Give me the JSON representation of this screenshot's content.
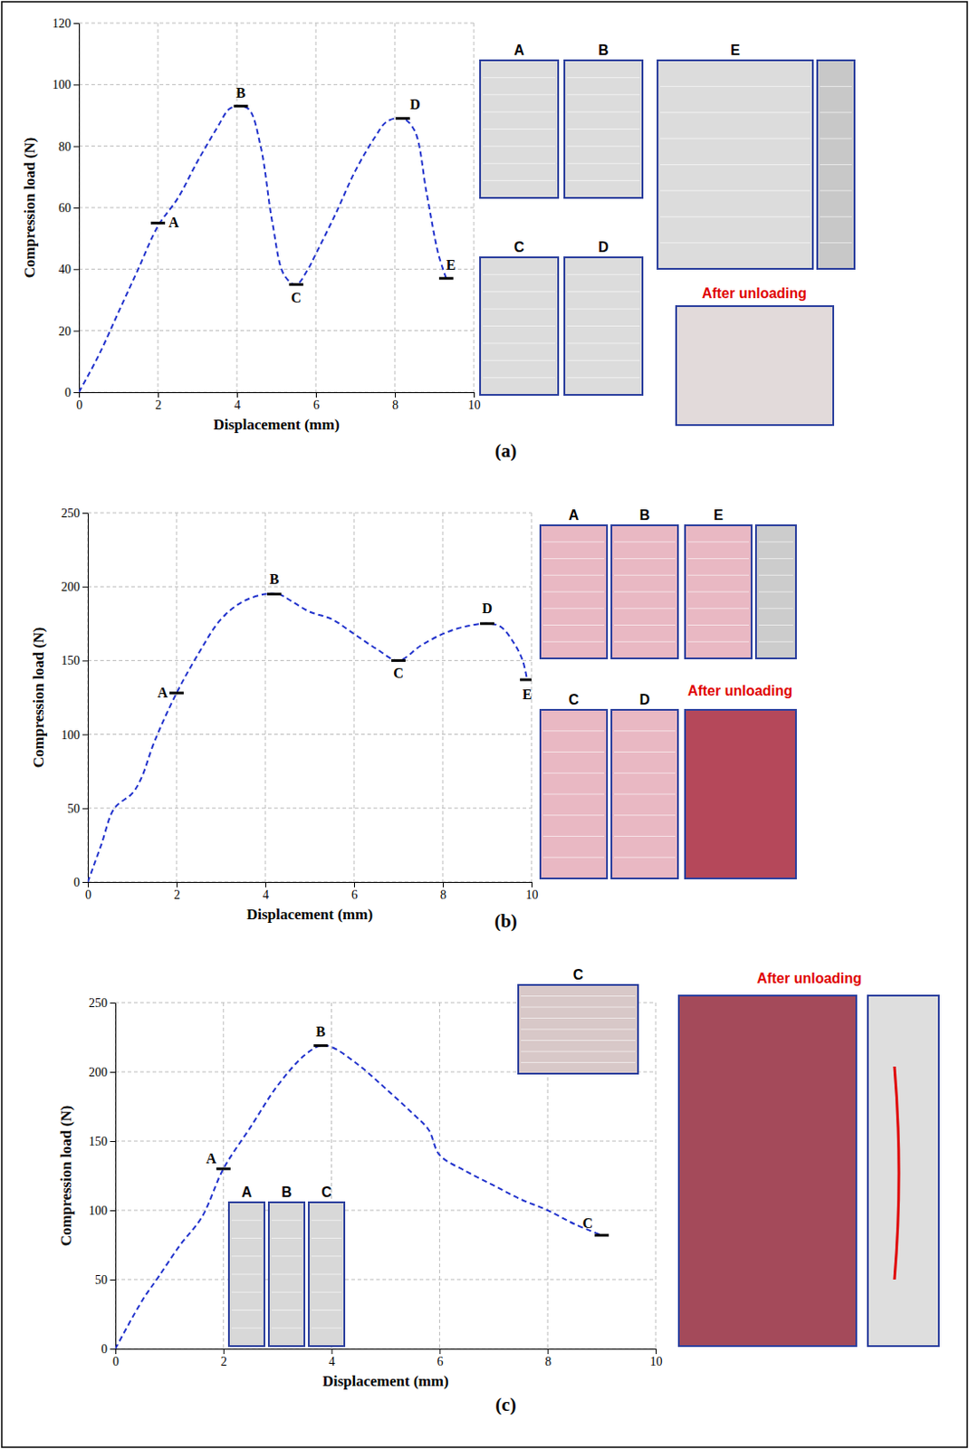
{
  "chart_data": [
    {
      "type": "line",
      "caption": "(a)",
      "x_label": "Displacement (mm)",
      "y_label": "Compression load (N)",
      "xlim": [
        0,
        10
      ],
      "ylim": [
        0,
        120
      ],
      "xticks": [
        0,
        2,
        4,
        6,
        8,
        10
      ],
      "yticks": [
        0,
        20,
        40,
        60,
        80,
        100,
        120
      ],
      "grid": true,
      "series": [
        {
          "color": "#2233cc",
          "line_style": "dashed",
          "x": [
            0,
            0.5,
            1,
            1.5,
            2,
            2.5,
            3,
            3.5,
            3.8,
            4,
            4.3,
            4.6,
            4.9,
            5.2,
            5.5,
            5.8,
            6,
            6.5,
            7,
            7.5,
            7.8,
            8.2,
            8.5,
            8.8,
            9.1,
            9.3
          ],
          "values": [
            0,
            12,
            26,
            40,
            54,
            63,
            75,
            86,
            92,
            93,
            92,
            80,
            55,
            38,
            35,
            40,
            45,
            58,
            72,
            83,
            88,
            89,
            85,
            65,
            45,
            37
          ]
        }
      ],
      "annotations": [
        {
          "text": "A",
          "x": 2,
          "y": 55
        },
        {
          "text": "B",
          "x": 4.1,
          "y": 93
        },
        {
          "text": "C",
          "x": 5.5,
          "y": 35
        },
        {
          "text": "D",
          "x": 8.2,
          "y": 89
        },
        {
          "text": "E",
          "x": 9.3,
          "y": 37
        }
      ],
      "photo_labels": [
        "A",
        "B",
        "C",
        "D",
        "E"
      ],
      "photo_caption": "After unloading"
    },
    {
      "type": "line",
      "caption": "(b)",
      "x_label": "Displacement (mm)",
      "y_label": "Compression load (N)",
      "xlim": [
        0,
        10
      ],
      "ylim": [
        0,
        250
      ],
      "xticks": [
        0,
        2,
        4,
        6,
        8,
        10
      ],
      "yticks": [
        0,
        50,
        100,
        150,
        200,
        250
      ],
      "grid": true,
      "series": [
        {
          "color": "#2233cc",
          "line_style": "dashed",
          "x": [
            0,
            0.3,
            0.6,
            1,
            1.2,
            1.5,
            2,
            2.5,
            3,
            3.5,
            4,
            4.3,
            4.6,
            5,
            5.5,
            6,
            6.5,
            7,
            7.5,
            8,
            8.5,
            9,
            9.3,
            9.6,
            9.8,
            9.9
          ],
          "values": [
            0,
            25,
            50,
            60,
            70,
            95,
            128,
            155,
            178,
            190,
            195,
            195,
            190,
            183,
            178,
            168,
            158,
            150,
            160,
            168,
            173,
            175,
            173,
            162,
            150,
            137
          ]
        }
      ],
      "annotations": [
        {
          "text": "A",
          "x": 2,
          "y": 128
        },
        {
          "text": "B",
          "x": 4.2,
          "y": 195
        },
        {
          "text": "C",
          "x": 7,
          "y": 150
        },
        {
          "text": "D",
          "x": 9,
          "y": 175
        },
        {
          "text": "E",
          "x": 9.9,
          "y": 137
        }
      ],
      "photo_labels": [
        "A",
        "B",
        "E",
        "C",
        "D"
      ],
      "photo_caption": "After unloading"
    },
    {
      "type": "line",
      "caption": "(c)",
      "x_label": "Displacement (mm)",
      "y_label": "Compression load (N)",
      "xlim": [
        0,
        10
      ],
      "ylim": [
        0,
        250
      ],
      "xticks": [
        0,
        2,
        4,
        6,
        8,
        10
      ],
      "yticks": [
        0,
        50,
        100,
        150,
        200,
        250
      ],
      "grid": true,
      "series": [
        {
          "color": "#2233cc",
          "line_style": "dashed",
          "x": [
            0,
            0.5,
            0.8,
            1.2,
            1.6,
            2,
            2.5,
            3,
            3.5,
            3.8,
            4,
            4.5,
            5,
            5.5,
            5.8,
            6,
            6.5,
            7,
            7.5,
            8,
            8.5,
            9
          ],
          "values": [
            0,
            35,
            52,
            75,
            95,
            130,
            160,
            190,
            212,
            219,
            218,
            205,
            188,
            170,
            158,
            140,
            128,
            118,
            108,
            100,
            90,
            82
          ]
        }
      ],
      "annotations": [
        {
          "text": "A",
          "x": 2,
          "y": 130
        },
        {
          "text": "B",
          "x": 3.8,
          "y": 219
        },
        {
          "text": "C",
          "x": 9,
          "y": 82
        }
      ],
      "photo_labels": [
        "C",
        "A",
        "B",
        "C"
      ],
      "photo_caption": "After unloading"
    }
  ]
}
